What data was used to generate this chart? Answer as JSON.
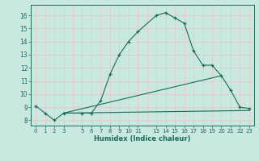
{
  "line1_x": [
    0,
    1,
    2,
    3,
    5,
    6,
    7,
    8,
    9,
    10,
    11,
    13,
    14,
    15,
    16,
    17,
    18,
    19,
    20,
    21,
    22,
    23
  ],
  "line1_y": [
    9.1,
    8.55,
    8.0,
    8.55,
    8.55,
    8.55,
    9.5,
    11.5,
    13.0,
    14.0,
    14.75,
    16.0,
    16.2,
    15.8,
    15.4,
    13.3,
    12.2,
    12.2,
    11.4,
    10.3,
    9.0,
    8.9
  ],
  "line2_x": [
    3,
    23
  ],
  "line2_y": [
    8.55,
    8.75
  ],
  "line3_x": [
    3,
    20
  ],
  "line3_y": [
    8.55,
    11.4
  ],
  "line_color": "#1a6b5a",
  "bg_color": "#c8e8e0",
  "grid_color": "#e8c8c8",
  "xlabel": "Humidex (Indice chaleur)",
  "ylim": [
    7.6,
    16.8
  ],
  "xlim": [
    -0.5,
    23.5
  ],
  "xticks": [
    0,
    1,
    2,
    3,
    5,
    6,
    7,
    8,
    9,
    10,
    11,
    13,
    14,
    15,
    16,
    17,
    18,
    19,
    20,
    21,
    22,
    23
  ],
  "xtick_labels": [
    "0",
    "1",
    "2",
    "3",
    "5",
    "6",
    "7",
    "8",
    "9",
    "10",
    "11",
    "13",
    "14",
    "15",
    "16",
    "17",
    "18",
    "19",
    "20",
    "21",
    "22",
    "23"
  ],
  "yticks": [
    8,
    9,
    10,
    11,
    12,
    13,
    14,
    15,
    16
  ],
  "grid_major_x": [
    0,
    1,
    2,
    3,
    4,
    5,
    6,
    7,
    8,
    9,
    10,
    11,
    12,
    13,
    14,
    15,
    16,
    17,
    18,
    19,
    20,
    21,
    22,
    23
  ],
  "grid_major_y": [
    8,
    9,
    10,
    11,
    12,
    13,
    14,
    15,
    16
  ]
}
